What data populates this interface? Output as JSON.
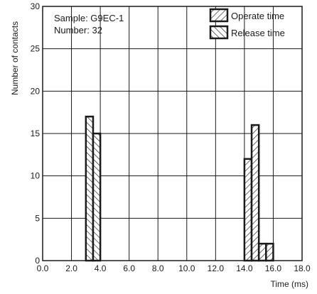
{
  "chart_data": {
    "type": "bar",
    "xlabel": "Time (ms)",
    "ylabel": "Number of contacts",
    "xlim": [
      0,
      18
    ],
    "ylim": [
      0,
      30
    ],
    "x_ticks": [
      "0.0",
      "2.0",
      "4.0",
      "6.0",
      "8.0",
      "10.0",
      "12.0",
      "14.0",
      "16.0",
      "18.0"
    ],
    "y_ticks": [
      "0",
      "5",
      "10",
      "15",
      "20",
      "25",
      "30"
    ],
    "grid": true,
    "bin_width": 0.5,
    "annotations": [
      "Sample: G9EC-1",
      "Number: 32"
    ],
    "legend_position": "top-right",
    "series": [
      {
        "name": "Operate time",
        "pattern": "hatch-forward",
        "bins": [
          {
            "x": 14.0,
            "count": 12
          },
          {
            "x": 14.5,
            "count": 16
          },
          {
            "x": 15.0,
            "count": 2
          },
          {
            "x": 15.5,
            "count": 2
          }
        ]
      },
      {
        "name": "Release time",
        "pattern": "hatch-backward",
        "bins": [
          {
            "x": 3.0,
            "count": 17
          },
          {
            "x": 3.5,
            "count": 15
          }
        ]
      }
    ]
  }
}
